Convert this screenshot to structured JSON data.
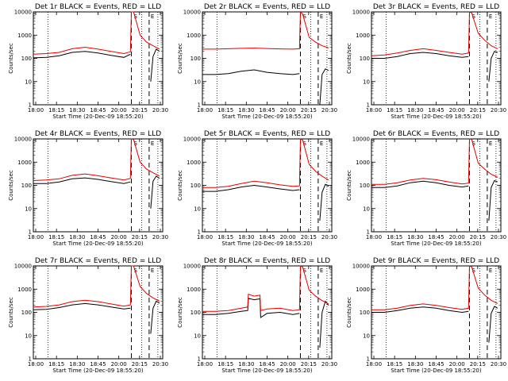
{
  "colors": {
    "events": "#000000",
    "lld": "#e00000",
    "background": "#ffffff"
  },
  "chart_data": [
    {
      "type": "line",
      "title": "Det 1r BLACK = Events, RED = LLD",
      "xlabel": "Start Time (20-Dec-09 18:55:20)",
      "ylabel": "Counts/sec",
      "yscale": "log",
      "ylim": [
        1,
        10000
      ],
      "xticks": [
        "18:00",
        "18:15",
        "18:30",
        "18:45",
        "20:00",
        "20:15",
        "20:30"
      ],
      "xlim": [
        0,
        40
      ],
      "x_unit": "minutes after 18:00",
      "markers": [
        "S",
        "E"
      ],
      "series": [
        {
          "name": "Events",
          "color": "#000000",
          "x": [
            0,
            4,
            8,
            12,
            16,
            20,
            24,
            28,
            30,
            30.3,
            34,
            36,
            36.3,
            37,
            38,
            39
          ],
          "y": [
            105,
            110,
            130,
            180,
            200,
            170,
            135,
            110,
            150,
            null,
            null,
            null,
            10,
            120,
            250,
            200
          ]
        },
        {
          "name": "LLD",
          "color": "#e00000",
          "x": [
            0,
            4,
            8,
            12,
            16,
            20,
            24,
            28,
            30,
            30.3,
            31,
            33,
            35,
            37,
            39
          ],
          "y": [
            150,
            160,
            180,
            260,
            300,
            250,
            200,
            160,
            190,
            10000,
            10000,
            1000,
            500,
            350,
            250
          ]
        }
      ]
    },
    {
      "type": "line",
      "title": "Det 2r BLACK = Events, RED = LLD",
      "xlabel": "Start Time (20-Dec-09 18:55:20)",
      "ylabel": "Counts/sec",
      "yscale": "log",
      "ylim": [
        1,
        10000
      ],
      "xticks": [
        "18:00",
        "18:15",
        "18:30",
        "18:45",
        "20:00",
        "20:15",
        "20:30"
      ],
      "xlim": [
        0,
        40
      ],
      "x_unit": "minutes after 18:00",
      "markers": [
        "S",
        "E"
      ],
      "series": [
        {
          "name": "Events",
          "color": "#000000",
          "x": [
            0,
            4,
            8,
            12,
            16,
            20,
            24,
            28,
            30,
            34,
            36,
            36.3,
            37,
            38,
            39
          ],
          "y": [
            20,
            20,
            22,
            28,
            32,
            25,
            22,
            20,
            22,
            null,
            null,
            1,
            20,
            35,
            30
          ]
        },
        {
          "name": "LLD",
          "color": "#e00000",
          "x": [
            0,
            4,
            8,
            12,
            16,
            20,
            24,
            28,
            30,
            30.3,
            31,
            33,
            35,
            37,
            39
          ],
          "y": [
            250,
            250,
            260,
            270,
            275,
            265,
            255,
            250,
            260,
            10000,
            8000,
            800,
            500,
            350,
            280
          ]
        }
      ]
    },
    {
      "type": "line",
      "title": "Det 3r BLACK = Events, RED = LLD",
      "xlabel": "Start Time (20-Dec-09 18:55:20)",
      "ylabel": "Counts/sec",
      "yscale": "log",
      "ylim": [
        1,
        10000
      ],
      "xticks": [
        "18:00",
        "18:15",
        "18:30",
        "18:45",
        "20:00",
        "20:15",
        "20:30"
      ],
      "xlim": [
        0,
        40
      ],
      "x_unit": "minutes after 18:00",
      "markers": [
        "S",
        "E"
      ],
      "series": [
        {
          "name": "Events",
          "color": "#000000",
          "x": [
            0,
            4,
            8,
            12,
            16,
            20,
            24,
            28,
            30,
            34,
            36,
            36.3,
            37,
            38,
            39
          ],
          "y": [
            100,
            100,
            120,
            160,
            180,
            160,
            130,
            110,
            120,
            null,
            null,
            10,
            100,
            200,
            180
          ]
        },
        {
          "name": "LLD",
          "color": "#e00000",
          "x": [
            0,
            4,
            8,
            12,
            16,
            20,
            24,
            28,
            30,
            30.3,
            31,
            33,
            35,
            37,
            39
          ],
          "y": [
            130,
            140,
            170,
            220,
            260,
            220,
            180,
            150,
            170,
            10000,
            9000,
            1200,
            600,
            350,
            260
          ]
        }
      ]
    },
    {
      "type": "line",
      "title": "Det 4r BLACK = Events, RED = LLD",
      "xlabel": "Start Time (20-Dec-09 18:55:20)",
      "ylabel": "Counts/sec",
      "yscale": "log",
      "ylim": [
        1,
        10000
      ],
      "xticks": [
        "18:00",
        "18:15",
        "18:30",
        "18:45",
        "20:00",
        "20:15",
        "20:30"
      ],
      "xlim": [
        0,
        40
      ],
      "x_unit": "minutes after 18:00",
      "markers": [
        "S",
        "E"
      ],
      "series": [
        {
          "name": "Events",
          "color": "#000000",
          "x": [
            0,
            4,
            8,
            12,
            16,
            20,
            24,
            28,
            30,
            34,
            36,
            36.3,
            37,
            38,
            39
          ],
          "y": [
            120,
            120,
            140,
            190,
            210,
            180,
            145,
            120,
            140,
            null,
            null,
            10,
            150,
            250,
            200
          ]
        },
        {
          "name": "LLD",
          "color": "#e00000",
          "x": [
            0,
            4,
            8,
            12,
            16,
            20,
            24,
            28,
            30,
            30.3,
            31,
            33,
            35,
            37,
            39
          ],
          "y": [
            160,
            170,
            190,
            270,
            310,
            260,
            210,
            170,
            200,
            10000,
            9500,
            1000,
            500,
            350,
            250
          ]
        }
      ]
    },
    {
      "type": "line",
      "title": "Det 5r BLACK = Events, RED = LLD",
      "xlabel": "Start Time (20-Dec-09 18:55:20)",
      "ylabel": "Counts/sec",
      "yscale": "log",
      "ylim": [
        1,
        10000
      ],
      "xticks": [
        "18:00",
        "18:15",
        "18:30",
        "18:45",
        "20:00",
        "20:15",
        "20:30"
      ],
      "xlim": [
        0,
        40
      ],
      "x_unit": "minutes after 18:00",
      "markers": [
        "S",
        "E"
      ],
      "series": [
        {
          "name": "Events",
          "color": "#000000",
          "x": [
            0,
            4,
            8,
            12,
            16,
            20,
            24,
            28,
            30,
            34,
            36,
            36.3,
            37,
            38,
            39
          ],
          "y": [
            55,
            55,
            65,
            85,
            100,
            85,
            70,
            60,
            65,
            null,
            null,
            3,
            50,
            110,
            90
          ]
        },
        {
          "name": "LLD",
          "color": "#e00000",
          "x": [
            0,
            4,
            8,
            12,
            16,
            20,
            24,
            28,
            30,
            30.3,
            31,
            33,
            35,
            37,
            39
          ],
          "y": [
            80,
            80,
            90,
            120,
            150,
            130,
            105,
            90,
            95,
            10000,
            9000,
            800,
            400,
            250,
            170
          ]
        }
      ]
    },
    {
      "type": "line",
      "title": "Det 6r BLACK = Events, RED = LLD",
      "xlabel": "Start Time (20-Dec-09 18:55:20)",
      "ylabel": "Counts/sec",
      "yscale": "log",
      "ylim": [
        1,
        10000
      ],
      "xticks": [
        "18:00",
        "18:15",
        "18:30",
        "18:45",
        "20:00",
        "20:15",
        "20:30"
      ],
      "xlim": [
        0,
        40
      ],
      "x_unit": "minutes after 18:00",
      "markers": [
        "S",
        "E"
      ],
      "series": [
        {
          "name": "Events",
          "color": "#000000",
          "x": [
            0,
            4,
            8,
            12,
            16,
            20,
            24,
            28,
            30,
            34,
            36,
            36.3,
            37,
            38,
            39
          ],
          "y": [
            80,
            80,
            95,
            130,
            150,
            130,
            100,
            85,
            95,
            null,
            null,
            3,
            80,
            160,
            140
          ]
        },
        {
          "name": "LLD",
          "color": "#e00000",
          "x": [
            0,
            4,
            8,
            12,
            16,
            20,
            24,
            28,
            30,
            30.3,
            31,
            33,
            35,
            37,
            39
          ],
          "y": [
            110,
            110,
            130,
            170,
            200,
            175,
            140,
            115,
            125,
            10000,
            9500,
            900,
            500,
            300,
            220
          ]
        }
      ]
    },
    {
      "type": "line",
      "title": "Det 7r BLACK = Events, RED = LLD",
      "xlabel": "Start Time (20-Dec-09 18:55:20)",
      "ylabel": "Counts/sec",
      "yscale": "log",
      "ylim": [
        1,
        10000
      ],
      "xticks": [
        "18:00",
        "18:15",
        "18:30",
        "18:45",
        "20:00",
        "20:15",
        "20:30"
      ],
      "xlim": [
        0,
        40
      ],
      "x_unit": "minutes after 18:00",
      "markers": [
        "S",
        "E"
      ],
      "series": [
        {
          "name": "Events",
          "color": "#000000",
          "x": [
            0,
            4,
            8,
            12,
            16,
            20,
            24,
            28,
            30,
            34,
            36,
            36.3,
            37,
            38,
            39
          ],
          "y": [
            130,
            135,
            160,
            210,
            240,
            210,
            170,
            140,
            150,
            null,
            null,
            12,
            150,
            300,
            250
          ]
        },
        {
          "name": "LLD",
          "color": "#e00000",
          "x": [
            0,
            4,
            8,
            12,
            16,
            20,
            24,
            28,
            30,
            30.3,
            31,
            33,
            35,
            37,
            39
          ],
          "y": [
            170,
            180,
            210,
            290,
            330,
            290,
            230,
            185,
            210,
            10000,
            10000,
            1300,
            650,
            420,
            300
          ]
        }
      ]
    },
    {
      "type": "line",
      "title": "Det 8r BLACK = Events, RED = LLD",
      "xlabel": "Start Time (20-Dec-09 18:55:20)",
      "ylabel": "Counts/sec",
      "yscale": "log",
      "ylim": [
        1,
        10000
      ],
      "xticks": [
        "18:00",
        "18:15",
        "18:30",
        "18:45",
        "20:00",
        "20:15",
        "20:30"
      ],
      "xlim": [
        0,
        40
      ],
      "x_unit": "minutes after 18:00",
      "markers": [
        "S",
        "E"
      ],
      "series": [
        {
          "name": "Events",
          "color": "#000000",
          "x": [
            0,
            4,
            8,
            12,
            14,
            14.2,
            16,
            17.8,
            18,
            20,
            24,
            28,
            30,
            34,
            36,
            36.3,
            37,
            38,
            39
          ],
          "y": [
            80,
            80,
            90,
            110,
            120,
            400,
            350,
            380,
            60,
            90,
            100,
            80,
            90,
            null,
            null,
            3,
            100,
            300,
            200
          ]
        },
        {
          "name": "LLD",
          "color": "#e00000",
          "x": [
            0,
            4,
            8,
            12,
            14,
            14.2,
            16,
            17.8,
            18,
            20,
            24,
            28,
            30,
            30.3,
            31,
            33,
            35,
            37,
            39
          ],
          "y": [
            110,
            110,
            120,
            150,
            170,
            600,
            500,
            550,
            120,
            140,
            150,
            120,
            130,
            10000,
            9000,
            900,
            500,
            320,
            230
          ]
        }
      ]
    },
    {
      "type": "line",
      "title": "Det 9r BLACK = Events, RED = LLD",
      "xlabel": "Start Time (20-Dec-09 18:55:20)",
      "ylabel": "Counts/sec",
      "yscale": "log",
      "ylim": [
        1,
        10000
      ],
      "xticks": [
        "18:00",
        "18:15",
        "18:30",
        "18:45",
        "20:00",
        "20:15",
        "20:30"
      ],
      "xlim": [
        0,
        40
      ],
      "x_unit": "minutes after 18:00",
      "markers": [
        "S",
        "E"
      ],
      "series": [
        {
          "name": "Events",
          "color": "#000000",
          "x": [
            0,
            4,
            8,
            12,
            16,
            20,
            24,
            28,
            30,
            34,
            36,
            36.3,
            37,
            38,
            39
          ],
          "y": [
            100,
            100,
            120,
            150,
            170,
            150,
            120,
            100,
            110,
            null,
            null,
            5,
            90,
            180,
            150
          ]
        },
        {
          "name": "LLD",
          "color": "#e00000",
          "x": [
            0,
            4,
            8,
            12,
            16,
            20,
            24,
            28,
            30,
            30.3,
            31,
            33,
            35,
            37,
            39
          ],
          "y": [
            130,
            130,
            150,
            200,
            230,
            200,
            160,
            135,
            150,
            10000,
            9000,
            1100,
            550,
            330,
            240
          ]
        }
      ]
    }
  ],
  "y_tick_labels": [
    "1",
    "10",
    "100",
    "1000",
    "10000"
  ],
  "y_tick_values": [
    1,
    10,
    100,
    1000,
    10000
  ],
  "vlines": {
    "dotted": [
      4.5,
      33.5,
      38.5
    ],
    "dashed": [
      30.3,
      35.8
    ]
  }
}
